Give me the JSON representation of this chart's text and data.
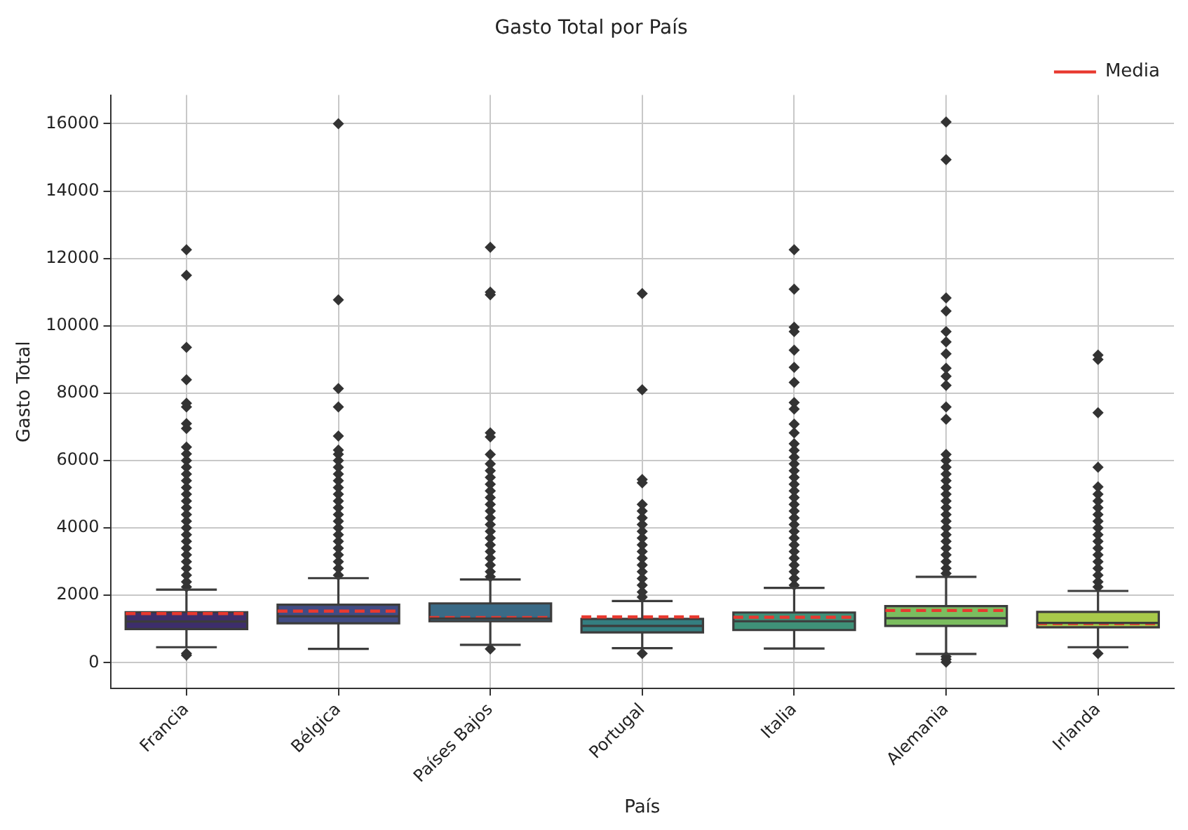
{
  "chart_data": {
    "type": "box",
    "title": "Gasto Total por País",
    "xlabel": "País",
    "ylabel": "Gasto Total",
    "categories": [
      "Francia",
      "Bélgica",
      "Países Bajos",
      "Portugal",
      "Italia",
      "Alemania",
      "Irlanda"
    ],
    "ylim": [
      -770,
      16850
    ],
    "yticks": [
      0,
      2000,
      4000,
      6000,
      8000,
      10000,
      12000,
      14000,
      16000
    ],
    "grid": true,
    "legend": "top right",
    "marker": "diamond",
    "series": [
      {
        "name": "Media",
        "color": "#e8392f",
        "line_style": "dashed",
        "colors": [
          "#3d2e6b",
          "#414c84",
          "#3a6a86",
          "#347e80",
          "#3f9178",
          "#7bbd5f",
          "#a8c94a"
        ],
        "boxes": [
          {
            "low": 460,
            "q1": 1000,
            "median": 1220,
            "q3": 1500,
            "high": 2170,
            "mean": 1460,
            "outliers": [
              220,
              270,
              2250,
              2400,
              2600,
              2800,
              3000,
              3200,
              3400,
              3600,
              3800,
              4000,
              4200,
              4400,
              4600,
              4800,
              5000,
              5200,
              5400,
              5600,
              5800,
              6000,
              6200,
              6400,
              6950,
              7100,
              7590,
              7700,
              8400,
              9360,
              11500,
              12260
            ]
          },
          {
            "low": 410,
            "q1": 1170,
            "median": 1380,
            "q3": 1720,
            "high": 2510,
            "mean": 1530,
            "outliers": [
              2600,
              2800,
              3000,
              3200,
              3400,
              3600,
              3800,
              4000,
              4200,
              4400,
              4600,
              4800,
              5000,
              5200,
              5400,
              5600,
              5800,
              6000,
              6190,
              6310,
              6730,
              7590,
              8140,
              10770,
              16000
            ]
          },
          {
            "low": 530,
            "q1": 1230,
            "median": 1310,
            "q3": 1760,
            "high": 2470,
            "mean": 1340,
            "outliers": [
              410,
              2550,
              2700,
              2900,
              3100,
              3300,
              3500,
              3700,
              3900,
              4100,
              4300,
              4500,
              4700,
              4900,
              5100,
              5300,
              5500,
              5700,
              5900,
              6180,
              6700,
              6820,
              10920,
              11000,
              12330
            ]
          },
          {
            "low": 430,
            "q1": 900,
            "median": 1090,
            "q3": 1300,
            "high": 1830,
            "mean": 1360,
            "outliers": [
              270,
              1950,
              2100,
              2300,
              2500,
              2700,
              2900,
              3100,
              3300,
              3500,
              3700,
              3900,
              4100,
              4300,
              4500,
              4700,
              5340,
              5440,
              8100,
              10960
            ]
          },
          {
            "low": 420,
            "q1": 970,
            "median": 1230,
            "q3": 1490,
            "high": 2220,
            "mean": 1350,
            "outliers": [
              2300,
              2500,
              2700,
              2900,
              3100,
              3300,
              3500,
              3700,
              3900,
              4100,
              4300,
              4500,
              4700,
              4900,
              5100,
              5300,
              5500,
              5700,
              5900,
              6100,
              6300,
              6500,
              6820,
              7080,
              7530,
              7720,
              8320,
              8770,
              9280,
              9830,
              9960,
              11090,
              12260
            ]
          },
          {
            "low": 260,
            "q1": 1090,
            "median": 1320,
            "q3": 1680,
            "high": 2550,
            "mean": 1550,
            "outliers": [
              20,
              100,
              180,
              2650,
              2800,
              3000,
              3200,
              3400,
              3600,
              3800,
              4000,
              4200,
              4400,
              4600,
              4800,
              5000,
              5200,
              5400,
              5600,
              5800,
              6000,
              6180,
              7230,
              7590,
              8230,
              8500,
              8740,
              9170,
              9520,
              9830,
              10440,
              10830,
              14930,
              16050
            ]
          },
          {
            "low": 460,
            "q1": 1050,
            "median": 1180,
            "q3": 1510,
            "high": 2130,
            "mean": 1160,
            "outliers": [
              270,
              2250,
              2400,
              2600,
              2800,
              3000,
              3200,
              3400,
              3600,
              3800,
              4000,
              4200,
              4400,
              4600,
              4800,
              5000,
              5220,
              5800,
              7420,
              9000,
              9130
            ]
          }
        ]
      }
    ]
  }
}
